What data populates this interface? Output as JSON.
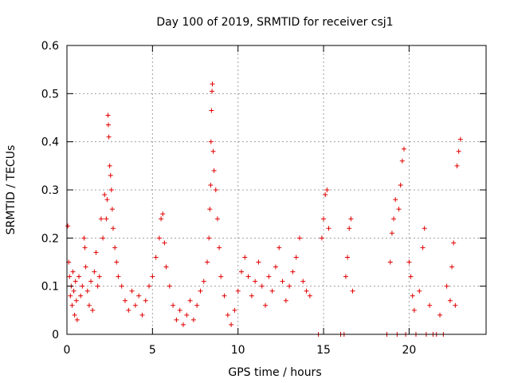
{
  "chart_data": {
    "type": "scatter",
    "title": "Day 100 of 2019, SRMTID for receiver csj1",
    "xlabel": "GPS time / hours",
    "ylabel": "SRMTID / TECUs",
    "xlim": [
      0,
      24.5
    ],
    "ylim": [
      0,
      0.6
    ],
    "xticks": [
      0,
      5,
      10,
      15,
      20
    ],
    "xtick_labels": [
      "0",
      "5",
      "10",
      "15",
      "20"
    ],
    "yticks": [
      0,
      0.1,
      0.2,
      0.3,
      0.4,
      0.5,
      0.6
    ],
    "ytick_labels": [
      "0",
      "0.1",
      "0.2",
      "0.3",
      "0.4",
      "0.5",
      "0.6"
    ],
    "grid": true,
    "series": [
      {
        "name": "SRMTID",
        "marker": "+",
        "color": "#e00000",
        "points": [
          [
            0.05,
            0.225
          ],
          [
            0.1,
            0.15
          ],
          [
            0.15,
            0.12
          ],
          [
            0.2,
            0.08
          ],
          [
            0.25,
            0.1
          ],
          [
            0.3,
            0.06
          ],
          [
            0.35,
            0.13
          ],
          [
            0.4,
            0.09
          ],
          [
            0.45,
            0.04
          ],
          [
            0.5,
            0.11
          ],
          [
            0.55,
            0.07
          ],
          [
            0.6,
            0.03
          ],
          [
            0.7,
            0.12
          ],
          [
            0.8,
            0.08
          ],
          [
            0.9,
            0.1
          ],
          [
            1.0,
            0.2
          ],
          [
            1.05,
            0.18
          ],
          [
            1.1,
            0.14
          ],
          [
            1.2,
            0.09
          ],
          [
            1.3,
            0.06
          ],
          [
            1.4,
            0.11
          ],
          [
            1.5,
            0.05
          ],
          [
            1.6,
            0.13
          ],
          [
            1.7,
            0.17
          ],
          [
            1.8,
            0.1
          ],
          [
            1.9,
            0.12
          ],
          [
            2.0,
            0.24
          ],
          [
            2.1,
            0.2
          ],
          [
            2.2,
            0.29
          ],
          [
            2.3,
            0.24
          ],
          [
            2.35,
            0.28
          ],
          [
            2.4,
            0.455
          ],
          [
            2.42,
            0.435
          ],
          [
            2.45,
            0.41
          ],
          [
            2.5,
            0.35
          ],
          [
            2.55,
            0.33
          ],
          [
            2.6,
            0.3
          ],
          [
            2.65,
            0.26
          ],
          [
            2.7,
            0.22
          ],
          [
            2.8,
            0.18
          ],
          [
            2.9,
            0.15
          ],
          [
            3.0,
            0.12
          ],
          [
            3.2,
            0.1
          ],
          [
            3.4,
            0.07
          ],
          [
            3.6,
            0.05
          ],
          [
            3.8,
            0.09
          ],
          [
            4.0,
            0.06
          ],
          [
            4.2,
            0.08
          ],
          [
            4.4,
            0.04
          ],
          [
            4.6,
            0.07
          ],
          [
            4.8,
            0.1
          ],
          [
            5.0,
            0.12
          ],
          [
            5.2,
            0.16
          ],
          [
            5.4,
            0.2
          ],
          [
            5.5,
            0.24
          ],
          [
            5.6,
            0.25
          ],
          [
            5.7,
            0.19
          ],
          [
            5.8,
            0.14
          ],
          [
            6.0,
            0.1
          ],
          [
            6.2,
            0.06
          ],
          [
            6.4,
            0.03
          ],
          [
            6.6,
            0.05
          ],
          [
            6.8,
            0.02
          ],
          [
            7.0,
            0.04
          ],
          [
            7.2,
            0.07
          ],
          [
            7.4,
            0.03
          ],
          [
            7.6,
            0.06
          ],
          [
            7.8,
            0.09
          ],
          [
            8.0,
            0.11
          ],
          [
            8.2,
            0.15
          ],
          [
            8.3,
            0.2
          ],
          [
            8.35,
            0.26
          ],
          [
            8.4,
            0.31
          ],
          [
            8.42,
            0.4
          ],
          [
            8.45,
            0.465
          ],
          [
            8.48,
            0.505
          ],
          [
            8.5,
            0.52
          ],
          [
            8.55,
            0.38
          ],
          [
            8.6,
            0.34
          ],
          [
            8.7,
            0.3
          ],
          [
            8.8,
            0.24
          ],
          [
            8.9,
            0.18
          ],
          [
            9.0,
            0.12
          ],
          [
            9.2,
            0.08
          ],
          [
            9.4,
            0.04
          ],
          [
            9.6,
            0.02
          ],
          [
            9.8,
            0.05
          ],
          [
            10.0,
            0.09
          ],
          [
            10.2,
            0.13
          ],
          [
            10.4,
            0.16
          ],
          [
            10.6,
            0.12
          ],
          [
            10.8,
            0.08
          ],
          [
            11.0,
            0.11
          ],
          [
            11.2,
            0.15
          ],
          [
            11.4,
            0.1
          ],
          [
            11.6,
            0.06
          ],
          [
            11.8,
            0.12
          ],
          [
            12.0,
            0.09
          ],
          [
            12.2,
            0.14
          ],
          [
            12.4,
            0.18
          ],
          [
            12.6,
            0.11
          ],
          [
            12.8,
            0.07
          ],
          [
            13.0,
            0.1
          ],
          [
            13.2,
            0.13
          ],
          [
            13.4,
            0.16
          ],
          [
            13.6,
            0.2
          ],
          [
            13.8,
            0.11
          ],
          [
            14.0,
            0.09
          ],
          [
            14.2,
            0.08
          ],
          [
            14.7,
            0.0
          ],
          [
            14.9,
            0.2
          ],
          [
            15.0,
            0.24
          ],
          [
            15.1,
            0.29
          ],
          [
            15.2,
            0.3
          ],
          [
            15.3,
            0.22
          ],
          [
            16.0,
            0.0
          ],
          [
            16.2,
            0.0
          ],
          [
            16.3,
            0.12
          ],
          [
            16.4,
            0.16
          ],
          [
            16.5,
            0.22
          ],
          [
            16.6,
            0.24
          ],
          [
            16.7,
            0.09
          ],
          [
            18.7,
            0.0
          ],
          [
            18.9,
            0.15
          ],
          [
            19.0,
            0.21
          ],
          [
            19.1,
            0.24
          ],
          [
            19.2,
            0.28
          ],
          [
            19.3,
            0.0
          ],
          [
            19.4,
            0.26
          ],
          [
            19.5,
            0.31
          ],
          [
            19.6,
            0.36
          ],
          [
            19.7,
            0.385
          ],
          [
            19.8,
            0.0
          ],
          [
            20.0,
            0.15
          ],
          [
            20.1,
            0.12
          ],
          [
            20.2,
            0.08
          ],
          [
            20.3,
            0.05
          ],
          [
            20.4,
            0.0
          ],
          [
            20.6,
            0.09
          ],
          [
            20.8,
            0.18
          ],
          [
            20.9,
            0.22
          ],
          [
            21.0,
            0.0
          ],
          [
            21.2,
            0.06
          ],
          [
            21.4,
            0.0
          ],
          [
            21.6,
            0.0
          ],
          [
            21.8,
            0.04
          ],
          [
            22.0,
            0.0
          ],
          [
            22.2,
            0.1
          ],
          [
            22.4,
            0.07
          ],
          [
            22.5,
            0.14
          ],
          [
            22.6,
            0.19
          ],
          [
            22.7,
            0.06
          ],
          [
            22.8,
            0.35
          ],
          [
            22.9,
            0.38
          ],
          [
            23.0,
            0.405
          ]
        ]
      }
    ]
  }
}
